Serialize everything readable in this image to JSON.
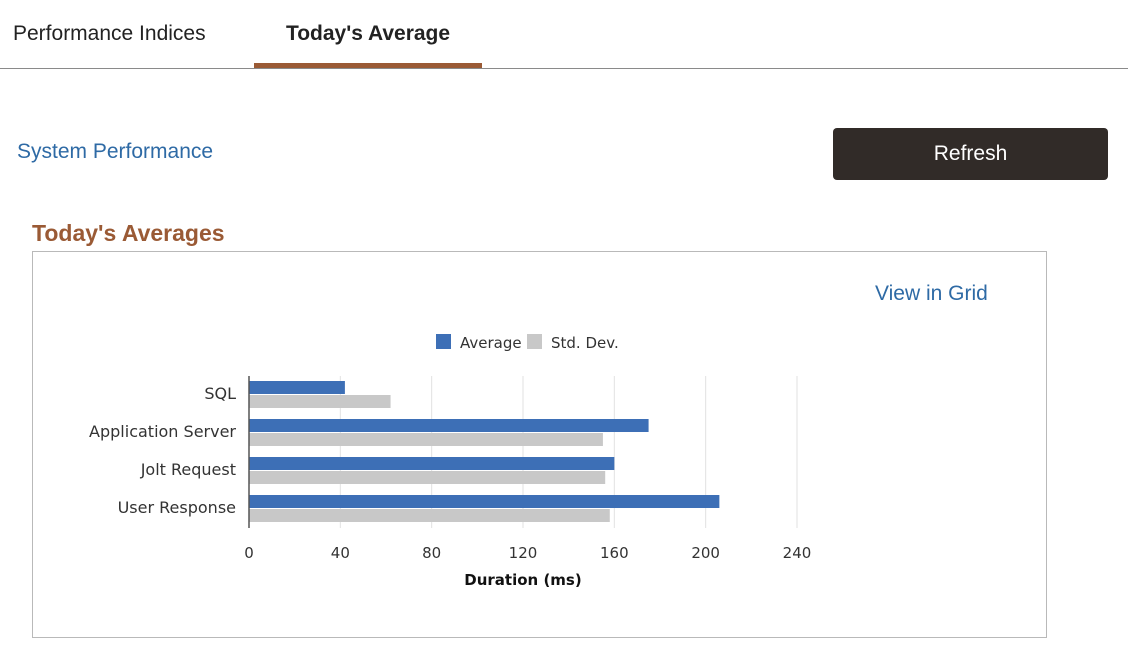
{
  "tabs": [
    {
      "label": "Performance Indices",
      "active": false
    },
    {
      "label": "Today's Average",
      "active": true
    }
  ],
  "system_link": "System Performance",
  "refresh_label": "Refresh",
  "section_title": "Today's Averages",
  "view_grid_label": "View in Grid",
  "colors": {
    "accent": "#9a5a35",
    "link": "#2e6aa5",
    "button": "#312b28",
    "average": "#3d6fb6",
    "stddev": "#c8c8c8"
  },
  "chart_data": {
    "type": "bar",
    "orientation": "horizontal",
    "categories": [
      "SQL",
      "Application Server",
      "Jolt Request",
      "User Response"
    ],
    "series": [
      {
        "name": "Average",
        "values": [
          42,
          175,
          160,
          206
        ]
      },
      {
        "name": "Std. Dev.",
        "values": [
          62,
          155,
          156,
          158
        ]
      }
    ],
    "xlabel": "Duration (ms)",
    "ylabel": "",
    "xlim": [
      0,
      240
    ],
    "xticks": [
      0,
      40,
      80,
      120,
      160,
      200,
      240
    ],
    "grid": true,
    "legend": "top-center"
  }
}
